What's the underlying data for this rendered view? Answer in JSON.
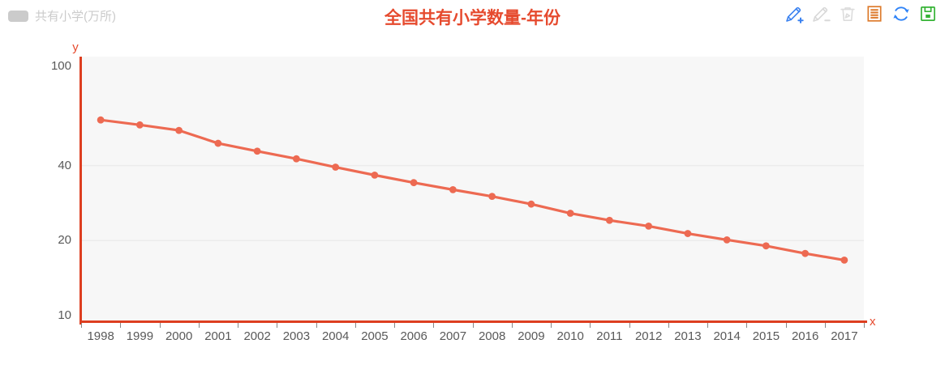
{
  "header": {
    "title": "全国共有小学数量-年份",
    "legend": {
      "label": "共有小学(万所)"
    },
    "toolbar": [
      {
        "id": "pencil-add",
        "color": "#3b82f0"
      },
      {
        "id": "pencil-remove",
        "color": "#d8d8d8"
      },
      {
        "id": "trash",
        "color": "#dcdcdc"
      },
      {
        "id": "data-view",
        "color": "#dd7a2b"
      },
      {
        "id": "restore",
        "color": "#2f83f7"
      },
      {
        "id": "save-image",
        "color": "#35b335"
      }
    ]
  },
  "colors": {
    "title": "#e64a2e",
    "axis": "#dd3e20",
    "series": "#ed6a52",
    "legend": "#cbcbcb",
    "plotbg": "#f7f7f7",
    "grid": "#ececec",
    "ticklabel": "#595959"
  },
  "chart_data": {
    "type": "line",
    "title": "全国共有小学数量-年份",
    "x": [
      "1998",
      "1999",
      "2000",
      "2001",
      "2002",
      "2003",
      "2004",
      "2005",
      "2006",
      "2007",
      "2008",
      "2009",
      "2010",
      "2011",
      "2012",
      "2013",
      "2014",
      "2015",
      "2016",
      "2017"
    ],
    "series": [
      {
        "name": "共有小学(万所)",
        "values": [
          60.96,
          58.23,
          55.36,
          49.13,
          45.69,
          42.58,
          39.42,
          36.62,
          34.16,
          32.01,
          30.09,
          28.02,
          25.74,
          24.12,
          22.86,
          21.35,
          20.14,
          19.05,
          17.76,
          16.7
        ]
      }
    ],
    "y_axis": {
      "name": "y",
      "scale": "log",
      "ticks": [
        100,
        40,
        20,
        10
      ],
      "gridline_ticks": [
        40,
        20
      ],
      "range_approx": [
        9.4,
        109
      ]
    },
    "x_axis": {
      "name": "x"
    },
    "legend_position": "top-left",
    "marker": "circle",
    "grid": "horizontal-partial"
  }
}
